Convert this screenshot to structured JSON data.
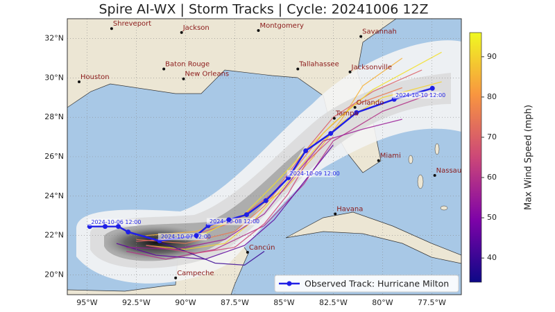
{
  "chart_data": {
    "type": "track-map",
    "title": "Spire AI-WX | Storm Tracks | Cycle: 20241006 12Z",
    "xlim": [
      -96,
      -76
    ],
    "ylim": [
      19,
      33
    ],
    "xticks": [
      {
        "value": -95,
        "label": "95°W"
      },
      {
        "value": -92.5,
        "label": "92.5°W"
      },
      {
        "value": -90,
        "label": "90°W"
      },
      {
        "value": -87.5,
        "label": "87.5°W"
      },
      {
        "value": -85,
        "label": "85°W"
      },
      {
        "value": -82.5,
        "label": "82.5°W"
      },
      {
        "value": -80,
        "label": "80°W"
      },
      {
        "value": -77.5,
        "label": "77.5°W"
      }
    ],
    "yticks": [
      {
        "value": 20,
        "label": "20°N"
      },
      {
        "value": 22,
        "label": "22°N"
      },
      {
        "value": 24,
        "label": "24°N"
      },
      {
        "value": 26,
        "label": "26°N"
      },
      {
        "value": 28,
        "label": "28°N"
      },
      {
        "value": 30,
        "label": "30°N"
      },
      {
        "value": 32,
        "label": "32°N"
      }
    ],
    "grid": true,
    "colorbar": {
      "label": "Max Wind Speed (mph)",
      "colormap": "plasma",
      "clim": [
        34,
        96
      ],
      "ticks": [
        40,
        50,
        60,
        70,
        80,
        90
      ]
    },
    "observed": {
      "name": "Observed Track: Hurricane Milton",
      "color": "#1f1fe6",
      "legend": "lower right",
      "lon": [
        -94.86,
        -94.08,
        -93.41,
        -92.91,
        -91.32,
        -89.45,
        -88.85,
        -87.8,
        -86.9,
        -85.92,
        -84.78,
        -83.9,
        -82.63,
        -81.32,
        -79.41,
        -77.47
      ],
      "lat": [
        22.46,
        22.46,
        22.46,
        22.18,
        21.73,
        22.0,
        22.5,
        22.8,
        23.06,
        23.77,
        24.93,
        26.3,
        27.18,
        28.24,
        28.91,
        29.47
      ],
      "labels": [
        "2024-10-06 12:00",
        null,
        null,
        null,
        "2024-10-07 12:00",
        null,
        "2024-10-08 12:00",
        null,
        null,
        null,
        "2024-10-09 12:00",
        null,
        null,
        null,
        "2024-10-10 12:00",
        null
      ]
    },
    "ensemble": [
      {
        "wind": 90,
        "lon": [
          -92,
          -90,
          -88,
          -86.5,
          -85,
          -83.5,
          -82,
          -80,
          -77
        ],
        "lat": [
          21.5,
          21.3,
          21.6,
          22.8,
          24.5,
          26.3,
          27.8,
          29,
          29.8
        ]
      },
      {
        "wind": 75,
        "lon": [
          -92.5,
          -90,
          -87.5,
          -86,
          -84.5,
          -83,
          -81.5,
          -79
        ],
        "lat": [
          21.8,
          21.6,
          22.2,
          23.5,
          25.3,
          27.2,
          28.6,
          29.5
        ]
      },
      {
        "wind": 60,
        "lon": [
          -93,
          -91,
          -88.5,
          -86,
          -84,
          -82.5,
          -80,
          -77.5
        ],
        "lat": [
          21.2,
          20.8,
          21.3,
          22.5,
          24.6,
          26.8,
          28.3,
          29.2
        ]
      },
      {
        "wind": 45,
        "lon": [
          -93.5,
          -91.5,
          -89,
          -87,
          -85.5,
          -84,
          -82.5
        ],
        "lat": [
          21.6,
          21.0,
          20.8,
          21.5,
          22.8,
          24.7,
          26.6
        ]
      },
      {
        "wind": 40,
        "lon": [
          -92,
          -90,
          -88.5,
          -87,
          -86
        ],
        "lat": [
          21.9,
          21.2,
          20.6,
          20.5,
          21.2
        ]
      },
      {
        "wind": 85,
        "lon": [
          -92,
          -89.5,
          -87,
          -85,
          -83.5,
          -82,
          -81,
          -79
        ],
        "lat": [
          22,
          22.2,
          23,
          24.3,
          26,
          28,
          29.6,
          31
        ]
      },
      {
        "wind": 70,
        "lon": [
          -92.5,
          -90,
          -87.5,
          -85.5,
          -84,
          -82.5,
          -80.5,
          -78
        ],
        "lat": [
          21.7,
          21.9,
          22.7,
          24.2,
          26.2,
          28.0,
          29.3,
          30.4
        ]
      },
      {
        "wind": 55,
        "lon": [
          -93,
          -90.5,
          -88,
          -86,
          -84.5,
          -83,
          -81,
          -79
        ],
        "lat": [
          21.4,
          21.3,
          21.8,
          23.1,
          25.0,
          26.8,
          27.4,
          27.9
        ]
      },
      {
        "wind": 92,
        "lon": [
          -91.5,
          -89,
          -87,
          -85.5,
          -84,
          -82.5,
          -80.5,
          -77
        ],
        "lat": [
          21.8,
          22.1,
          23.1,
          24.6,
          26.2,
          27.7,
          29.4,
          31.3
        ]
      },
      {
        "wind": 65,
        "lon": [
          -92,
          -89.5,
          -87.5,
          -86,
          -84.8,
          -83.8,
          -82.5
        ],
        "lat": [
          21.5,
          21.1,
          21.4,
          22.6,
          24.1,
          25.8,
          27.0
        ]
      }
    ],
    "cities": [
      {
        "name": "Shreveport",
        "lon": -93.75,
        "lat": 32.5
      },
      {
        "name": "Jackson",
        "lon": -90.2,
        "lat": 32.3
      },
      {
        "name": "Montgomery",
        "lon": -86.3,
        "lat": 32.4
      },
      {
        "name": "Savannah",
        "lon": -81.1,
        "lat": 32.1
      },
      {
        "name": "Baton Rouge",
        "lon": -91.1,
        "lat": 30.45
      },
      {
        "name": "New Orleans",
        "lon": -90.1,
        "lat": 29.95
      },
      {
        "name": "Houston",
        "lon": -95.4,
        "lat": 29.8
      },
      {
        "name": "Tallahassee",
        "lon": -84.3,
        "lat": 30.45
      },
      {
        "name": "Jacksonville",
        "lon": -81.65,
        "lat": 30.3
      },
      {
        "name": "Orlando",
        "lon": -81.4,
        "lat": 28.5
      },
      {
        "name": "Tampa",
        "lon": -82.45,
        "lat": 27.95
      },
      {
        "name": "Miami",
        "lon": -80.2,
        "lat": 25.8
      },
      {
        "name": "Nassau",
        "lon": -77.35,
        "lat": 25.05
      },
      {
        "name": "Havana",
        "lon": -82.4,
        "lat": 23.1
      },
      {
        "name": "Cancún",
        "lon": -86.85,
        "lat": 21.15
      },
      {
        "name": "Campeche",
        "lon": -90.5,
        "lat": 19.85
      }
    ]
  }
}
